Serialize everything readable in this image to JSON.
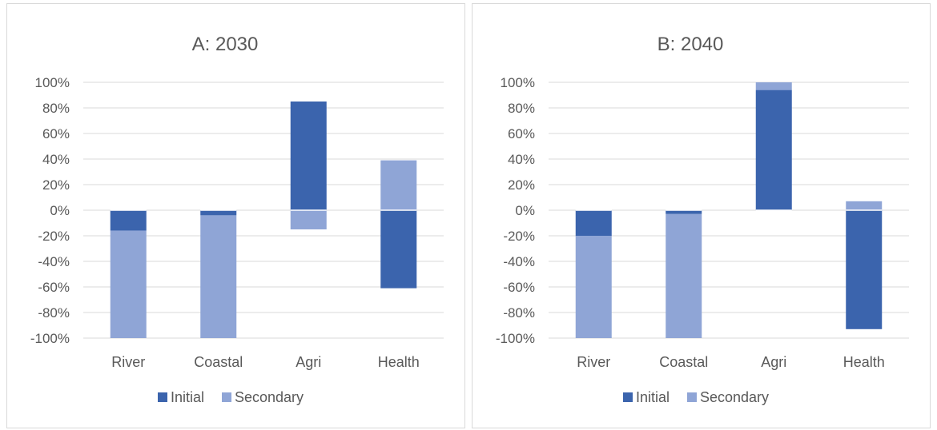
{
  "colors": {
    "initial": "#3b64ad",
    "secondary": "#8fa5d6",
    "grid": "#d9d9d9",
    "text": "#595959"
  },
  "chart_data": [
    {
      "type": "bar",
      "stacked": true,
      "title": "A: 2030",
      "categories": [
        "River",
        "Coastal",
        "Agri",
        "Health"
      ],
      "ylim": [
        -100,
        100
      ],
      "yticks": [
        -100,
        -80,
        -60,
        -40,
        -20,
        0,
        20,
        40,
        60,
        80,
        100
      ],
      "tick_labels": [
        "-100%",
        "-80%",
        "-60%",
        "-40%",
        "-20%",
        "0%",
        "20%",
        "40%",
        "60%",
        "80%",
        "100%"
      ],
      "grid": true,
      "legend_position": "bottom",
      "legend": [
        "Initial",
        "Secondary"
      ],
      "series": [
        {
          "name": "Initial",
          "values": [
            -16,
            -4,
            85,
            -61
          ]
        },
        {
          "name": "Secondary",
          "values": [
            -84,
            -96,
            -15,
            39
          ]
        }
      ]
    },
    {
      "type": "bar",
      "stacked": true,
      "title": "B: 2040",
      "categories": [
        "River",
        "Coastal",
        "Agri",
        "Health"
      ],
      "ylim": [
        -100,
        100
      ],
      "yticks": [
        -100,
        -80,
        -60,
        -40,
        -20,
        0,
        20,
        40,
        60,
        80,
        100
      ],
      "tick_labels": [
        "-100%",
        "-80%",
        "-60%",
        "-40%",
        "-20%",
        "0%",
        "20%",
        "40%",
        "60%",
        "80%",
        "100%"
      ],
      "grid": true,
      "legend_position": "bottom",
      "legend": [
        "Initial",
        "Secondary"
      ],
      "series": [
        {
          "name": "Initial",
          "values": [
            -20,
            -3,
            94,
            -93
          ]
        },
        {
          "name": "Secondary",
          "values": [
            -80,
            -97,
            6,
            7
          ]
        }
      ]
    }
  ]
}
